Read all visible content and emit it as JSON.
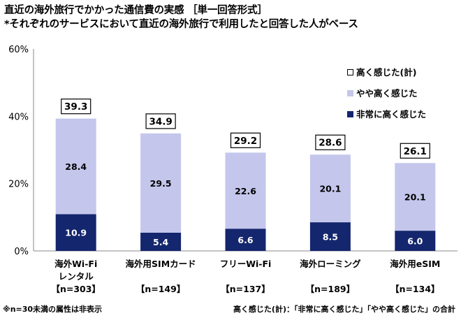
{
  "title": "直近の海外旅行でかかった通信費の実感 ［単一回答形式］",
  "subtitle": "*それぞれのサービスにおいて直近の海外旅行で利用したと回答した人がベース",
  "footnote_left": "※n=30未満の属性は非表示",
  "footnote_right": "高く感じた(計)：「非常に高く感じた」「やや高く感じた」の合計",
  "colors": {
    "high_total": "#ffffff",
    "somewhat": "#c4c6ec",
    "very": "#14266e"
  },
  "chart_data": {
    "type": "bar",
    "stacked": true,
    "categories": [
      {
        "lines": [
          "海外Wi-Fi",
          "レンタル"
        ],
        "n": "【n=303】"
      },
      {
        "lines": [
          "海外用SIMカード"
        ],
        "n": "【n=149】"
      },
      {
        "lines": [
          "フリーWi-Fi"
        ],
        "n": "【n=137】"
      },
      {
        "lines": [
          "海外ローミング"
        ],
        "n": "【n=189】"
      },
      {
        "lines": [
          "海外用eSIM"
        ],
        "n": "【n=134】"
      }
    ],
    "series": [
      {
        "name": "非常に高く感じた",
        "values": [
          10.9,
          5.4,
          6.6,
          8.5,
          6.0
        ]
      },
      {
        "name": "やや高く感じた",
        "values": [
          28.4,
          29.5,
          22.6,
          20.1,
          20.1
        ]
      }
    ],
    "totals_name": "高く感じた(計)",
    "totals": [
      39.3,
      34.9,
      29.2,
      28.6,
      26.1
    ],
    "ylim": [
      0,
      60
    ],
    "yticks": [
      "0%",
      "20%",
      "40%",
      "60%"
    ],
    "legend_position": "top-right",
    "grid": false
  }
}
